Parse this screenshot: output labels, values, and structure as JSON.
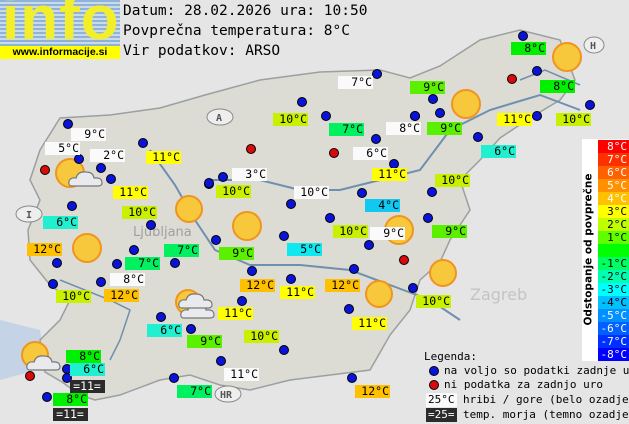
{
  "logo": {
    "text": "info",
    "url": "www.informacije.si"
  },
  "header": {
    "date_line": "Datum: 28.02.2026 ura: 10:50",
    "avg_line": "Povprečna temperatura: 8°C",
    "source_line": "Vir podatkov: ARSO"
  },
  "map_places": {
    "ljubljana": "Ljubljana",
    "zagreb": "Zagreb",
    "austria": "A",
    "italy": "I",
    "croatia": "HR",
    "hungary": "H"
  },
  "labels": [
    {
      "text": "8°C",
      "kind": "land",
      "color": "#00f000"
    },
    {
      "text": "8°C",
      "kind": "land",
      "color": "#00f000"
    },
    {
      "text": "9°C",
      "kind": "land",
      "color": "#5af000"
    },
    {
      "text": "9°C",
      "kind": "land",
      "color": "#5af000"
    },
    {
      "text": "11°C",
      "kind": "land",
      "color": "#ffff00"
    },
    {
      "text": "10°C",
      "kind": "land",
      "color": "#c8f000"
    },
    {
      "text": "6°C",
      "kind": "land",
      "color": "#20f0d0"
    },
    {
      "text": "7°C",
      "kind": "hill",
      "color": "#fafafa"
    },
    {
      "text": "10°C",
      "kind": "land",
      "color": "#c8f000"
    },
    {
      "text": "7°C",
      "kind": "land",
      "color": "#00f060"
    },
    {
      "text": "8°C",
      "kind": "hill",
      "color": "#fafafa"
    },
    {
      "text": "6°C",
      "kind": "hill",
      "color": "#fafafa"
    },
    {
      "text": "3°C",
      "kind": "hill",
      "color": "#fafafa"
    },
    {
      "text": "10°C",
      "kind": "land",
      "color": "#c8f000"
    },
    {
      "text": "11°C",
      "kind": "land",
      "color": "#ffff00"
    },
    {
      "text": "10°C",
      "kind": "hill",
      "color": "#fafafa"
    },
    {
      "text": "4°C",
      "kind": "land",
      "color": "#10c8f0"
    },
    {
      "text": "10°C",
      "kind": "land",
      "color": "#c8f000"
    },
    {
      "text": "9°C",
      "kind": "land",
      "color": "#5af000"
    },
    {
      "text": "9°C",
      "kind": "hill",
      "color": "#fafafa"
    },
    {
      "text": "10°C",
      "kind": "land",
      "color": "#c8f000"
    },
    {
      "text": "5°C",
      "kind": "land",
      "color": "#10e8f0"
    },
    {
      "text": "9°C",
      "kind": "land",
      "color": "#5af000"
    },
    {
      "text": "12°C",
      "kind": "land",
      "color": "#ffc000"
    },
    {
      "text": "11°C",
      "kind": "land",
      "color": "#ffff00"
    },
    {
      "text": "12°C",
      "kind": "land",
      "color": "#ffc000"
    },
    {
      "text": "10°C",
      "kind": "land",
      "color": "#c8f000"
    },
    {
      "text": "11°C",
      "kind": "land",
      "color": "#ffff00"
    },
    {
      "text": "11°C",
      "kind": "land",
      "color": "#ffff00"
    },
    {
      "text": "10°C",
      "kind": "land",
      "color": "#c8f000"
    },
    {
      "text": "9°C",
      "kind": "land",
      "color": "#5af000"
    },
    {
      "text": "11°C",
      "kind": "hill",
      "color": "#fafafa"
    },
    {
      "text": "7°C",
      "kind": "land",
      "color": "#00f060"
    },
    {
      "text": "12°C",
      "kind": "land",
      "color": "#ffc000"
    },
    {
      "text": "9°C",
      "kind": "hill",
      "color": "#fafafa"
    },
    {
      "text": "5°C",
      "kind": "hill",
      "color": "#fafafa"
    },
    {
      "text": "2°C",
      "kind": "hill",
      "color": "#fafafa"
    },
    {
      "text": "11°C",
      "kind": "land",
      "color": "#ffff00"
    },
    {
      "text": "11°C",
      "kind": "land",
      "color": "#ffff00"
    },
    {
      "text": "10°C",
      "kind": "land",
      "color": "#c8f000"
    },
    {
      "text": "6°C",
      "kind": "land",
      "color": "#20f0d0"
    },
    {
      "text": "12°C",
      "kind": "land",
      "color": "#ffc000"
    },
    {
      "text": "7°C",
      "kind": "land",
      "color": "#00f060"
    },
    {
      "text": "7°C",
      "kind": "land",
      "color": "#00f060"
    },
    {
      "text": "8°C",
      "kind": "hill",
      "color": "#fafafa"
    },
    {
      "text": "12°C",
      "kind": "land",
      "color": "#ffc000"
    },
    {
      "text": "10°C",
      "kind": "land",
      "color": "#c8f000"
    },
    {
      "text": "6°C",
      "kind": "land",
      "color": "#20f0d0"
    },
    {
      "text": "8°C",
      "kind": "land",
      "color": "#00f000"
    },
    {
      "text": "6°C",
      "kind": "land",
      "color": "#20f0d0"
    },
    {
      "text": "=11=",
      "kind": "sea",
      "color": "#2b2b2b"
    },
    {
      "text": "8°C",
      "kind": "land",
      "color": "#00f000"
    },
    {
      "text": "=11=",
      "kind": "sea",
      "color": "#2b2b2b"
    }
  ],
  "scale": {
    "title": "Odstopanje od povprečne temperature:",
    "steps": [
      {
        "text": "8°C",
        "color": "#ff0000"
      },
      {
        "text": "7°C",
        "color": "#ff3000"
      },
      {
        "text": "6°C",
        "color": "#ff6000"
      },
      {
        "text": "5°C",
        "color": "#ff9000"
      },
      {
        "text": "4°C",
        "color": "#ffc000"
      },
      {
        "text": "3°C",
        "color": "#ffff00"
      },
      {
        "text": "2°C",
        "color": "#c0ff00"
      },
      {
        "text": "1°C",
        "color": "#60ff00"
      },
      {
        "text": "",
        "color": "#00ff00"
      },
      {
        "text": "-1°C",
        "color": "#00ff60"
      },
      {
        "text": "-2°C",
        "color": "#00ffb0"
      },
      {
        "text": "-3°C",
        "color": "#00ffff"
      },
      {
        "text": "-4°C",
        "color": "#00c0ff"
      },
      {
        "text": "-5°C",
        "color": "#0090ff"
      },
      {
        "text": "-6°C",
        "color": "#0060ff"
      },
      {
        "text": "-7°C",
        "color": "#0030ff"
      },
      {
        "text": "-8°C",
        "color": "#0000ff"
      }
    ]
  },
  "legend": {
    "title": "Legenda:",
    "available": "na voljo so podatki zadnje ure",
    "unavailable": "ni podatka za zadnjo uro",
    "hill_sample": "25°C",
    "hill_text": "hribi / gore (belo ozadje)",
    "sea_sample": "=25=",
    "sea_text": "temp. morja (temno ozadje)"
  }
}
